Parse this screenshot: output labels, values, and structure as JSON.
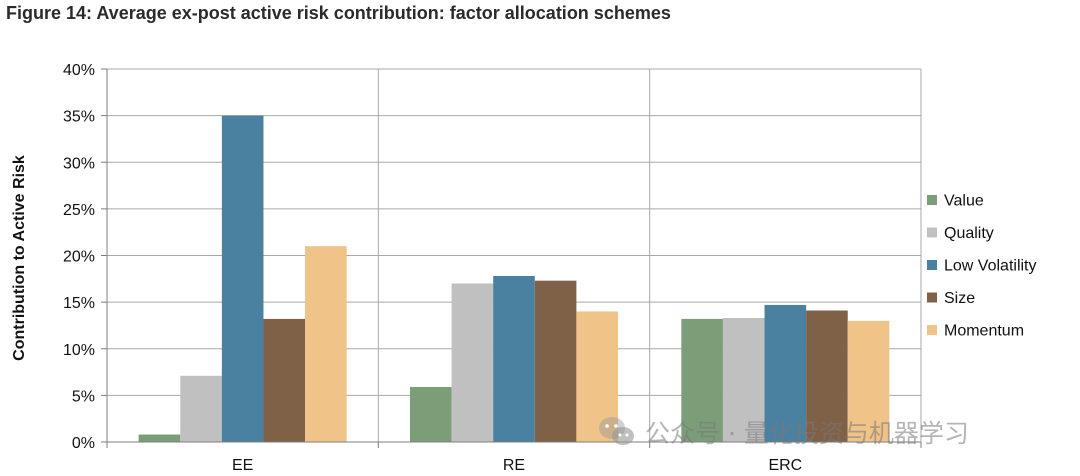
{
  "title": "Figure 14: Average ex-post active risk contribution: factor allocation schemes",
  "watermark": "公众号 · 量化投资与机器学习",
  "colors": {
    "Value": "#7b9e78",
    "Quality": "#c0c0c0",
    "Low Volatility": "#4a81a0",
    "Size": "#7f6148",
    "Momentum": "#f0c388",
    "grid": "#a9a9a9",
    "axis": "#7f7f7f"
  },
  "chart_data": {
    "type": "bar",
    "categories": [
      "EE",
      "RE",
      "ERC"
    ],
    "series": [
      {
        "name": "Value",
        "values": [
          0.8,
          5.9,
          13.2
        ]
      },
      {
        "name": "Quality",
        "values": [
          7.1,
          17.0,
          13.3
        ]
      },
      {
        "name": "Low Volatility",
        "values": [
          35.0,
          17.8,
          14.7
        ]
      },
      {
        "name": "Size",
        "values": [
          13.2,
          17.3,
          14.1
        ]
      },
      {
        "name": "Momentum",
        "values": [
          21.0,
          14.0,
          13.0
        ]
      }
    ],
    "ylabel": "Contribution to Active Risk",
    "xlabel": "",
    "ylim": [
      0,
      40
    ],
    "yticks": [
      0,
      5,
      10,
      15,
      20,
      25,
      30,
      35,
      40
    ],
    "ytick_labels": [
      "0%",
      "5%",
      "10%",
      "15%",
      "20%",
      "25%",
      "30%",
      "35%",
      "40%"
    ],
    "grid": true,
    "legend_position": "right"
  }
}
